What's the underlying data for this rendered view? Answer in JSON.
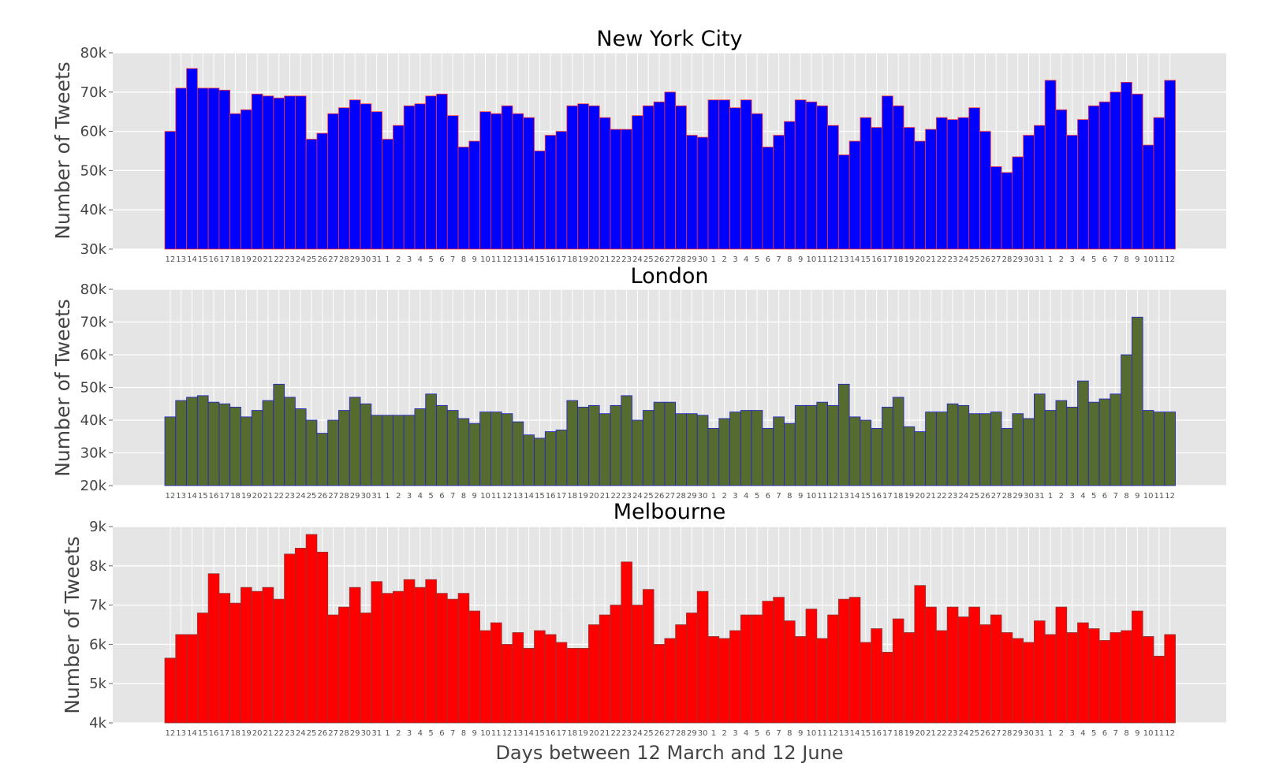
{
  "chart_data": [
    {
      "type": "bar",
      "title": "New York City",
      "ylabel": "Number of Tweets",
      "xlabel": "",
      "ylim": [
        30000,
        80000
      ],
      "yticks": [
        "30k",
        "40k",
        "50k",
        "60k",
        "70k",
        "80k"
      ],
      "grid": true,
      "bar_color": "#0000ff",
      "edge_color": "#ff3333",
      "categories": [
        "12",
        "13",
        "14",
        "15",
        "16",
        "17",
        "18",
        "19",
        "20",
        "21",
        "22",
        "23",
        "24",
        "25",
        "26",
        "27",
        "28",
        "29",
        "30",
        "31",
        "1",
        "2",
        "3",
        "4",
        "5",
        "6",
        "7",
        "8",
        "9",
        "10",
        "11",
        "12",
        "13",
        "14",
        "15",
        "16",
        "17",
        "18",
        "19",
        "20",
        "21",
        "22",
        "23",
        "24",
        "25",
        "26",
        "27",
        "28",
        "29",
        "30",
        "1",
        "2",
        "3",
        "4",
        "5",
        "6",
        "7",
        "8",
        "9",
        "10",
        "11",
        "12",
        "13",
        "14",
        "15",
        "16",
        "17",
        "18",
        "19",
        "20",
        "21",
        "22",
        "23",
        "24",
        "25",
        "26",
        "27",
        "28",
        "29",
        "30",
        "31",
        "1",
        "2",
        "3",
        "4",
        "5",
        "6",
        "7",
        "8",
        "9",
        "10",
        "11",
        "12"
      ],
      "values": [
        60000,
        71000,
        76000,
        71000,
        71000,
        70500,
        64500,
        65500,
        69500,
        69000,
        68500,
        69000,
        69000,
        58000,
        59500,
        64500,
        66000,
        68000,
        67000,
        65000,
        58000,
        61500,
        66500,
        67000,
        69000,
        69500,
        64000,
        56000,
        57500,
        65000,
        64500,
        66500,
        64500,
        63500,
        55000,
        59000,
        60000,
        66500,
        67000,
        66500,
        63500,
        60500,
        60500,
        64000,
        66500,
        67500,
        70000,
        66500,
        59000,
        58500,
        68000,
        68000,
        66000,
        68000,
        64500,
        56000,
        59000,
        62500,
        68000,
        67500,
        66500,
        61500,
        54000,
        57500,
        63500,
        61000,
        69000,
        66500,
        61000,
        57500,
        60500,
        63500,
        63000,
        63500,
        66000,
        60000,
        51000,
        49500,
        53500,
        59000,
        61500,
        73000,
        65500,
        59000,
        63000,
        66500,
        67500,
        70000,
        72500,
        69500,
        56500,
        63500,
        73000
      ]
    },
    {
      "type": "bar",
      "title": "London",
      "ylabel": "Number of Tweets",
      "xlabel": "",
      "ylim": [
        20000,
        80000
      ],
      "yticks": [
        "20k",
        "30k",
        "40k",
        "50k",
        "60k",
        "70k",
        "80k"
      ],
      "grid": true,
      "bar_color": "#556b2f",
      "edge_color": "#2222cc",
      "categories": [
        "12",
        "13",
        "14",
        "15",
        "16",
        "17",
        "18",
        "19",
        "20",
        "21",
        "22",
        "23",
        "24",
        "25",
        "26",
        "27",
        "28",
        "29",
        "30",
        "31",
        "1",
        "2",
        "3",
        "4",
        "5",
        "6",
        "7",
        "8",
        "9",
        "10",
        "11",
        "12",
        "13",
        "14",
        "15",
        "16",
        "17",
        "18",
        "19",
        "20",
        "21",
        "22",
        "23",
        "24",
        "25",
        "26",
        "27",
        "28",
        "29",
        "30",
        "1",
        "2",
        "3",
        "4",
        "5",
        "6",
        "7",
        "8",
        "9",
        "10",
        "11",
        "12",
        "13",
        "14",
        "15",
        "16",
        "17",
        "18",
        "19",
        "20",
        "21",
        "22",
        "23",
        "24",
        "25",
        "26",
        "27",
        "28",
        "29",
        "30",
        "31",
        "1",
        "2",
        "3",
        "4",
        "5",
        "6",
        "7",
        "8",
        "9",
        "10",
        "11",
        "12"
      ],
      "values": [
        41000,
        46000,
        47000,
        47500,
        45500,
        45000,
        44000,
        41000,
        43000,
        46000,
        51000,
        47000,
        43500,
        40000,
        36000,
        40000,
        43000,
        47000,
        45000,
        41500,
        41500,
        41500,
        41500,
        43500,
        48000,
        44500,
        43000,
        40500,
        39000,
        42500,
        42500,
        42000,
        39500,
        35500,
        34500,
        36500,
        37000,
        46000,
        44000,
        44500,
        42000,
        44500,
        47500,
        40000,
        43000,
        45500,
        45500,
        42000,
        42000,
        41500,
        37500,
        40500,
        42500,
        43000,
        43000,
        37500,
        41000,
        39000,
        44500,
        44500,
        45500,
        44500,
        51000,
        41000,
        40000,
        37500,
        44000,
        47000,
        38000,
        36500,
        42500,
        42500,
        45000,
        44500,
        42000,
        42000,
        42500,
        37500,
        42000,
        40500,
        48000,
        43000,
        46000,
        44000,
        52000,
        45500,
        46500,
        48000,
        60000,
        71500,
        43000,
        42500,
        42500
      ]
    },
    {
      "type": "bar",
      "title": "Melbourne",
      "ylabel": "Number of Tweets",
      "xlabel": "Days between 12 March and 12 June",
      "ylim": [
        4000,
        9000
      ],
      "yticks": [
        "4k",
        "5k",
        "6k",
        "7k",
        "8k",
        "9k"
      ],
      "grid": true,
      "bar_color": "#ff0000",
      "edge_color": "#8b3a3a",
      "categories": [
        "12",
        "13",
        "14",
        "15",
        "16",
        "17",
        "18",
        "19",
        "20",
        "21",
        "22",
        "23",
        "24",
        "25",
        "26",
        "27",
        "28",
        "29",
        "30",
        "31",
        "1",
        "2",
        "3",
        "4",
        "5",
        "6",
        "7",
        "8",
        "9",
        "10",
        "11",
        "12",
        "13",
        "14",
        "15",
        "16",
        "17",
        "18",
        "19",
        "20",
        "21",
        "22",
        "23",
        "24",
        "25",
        "26",
        "27",
        "28",
        "29",
        "30",
        "1",
        "2",
        "3",
        "4",
        "5",
        "6",
        "7",
        "8",
        "9",
        "10",
        "11",
        "12",
        "13",
        "14",
        "15",
        "16",
        "17",
        "18",
        "19",
        "20",
        "21",
        "22",
        "23",
        "24",
        "25",
        "26",
        "27",
        "28",
        "29",
        "30",
        "31",
        "1",
        "2",
        "3",
        "4",
        "5",
        "6",
        "7",
        "8",
        "9",
        "10",
        "11",
        "12"
      ],
      "values": [
        5650,
        6250,
        6250,
        6800,
        7800,
        7300,
        7050,
        7450,
        7350,
        7450,
        7150,
        8300,
        8450,
        8800,
        8350,
        6750,
        6950,
        7450,
        6800,
        7600,
        7300,
        7350,
        7650,
        7450,
        7650,
        7300,
        7150,
        7300,
        6850,
        6350,
        6550,
        6000,
        6300,
        5900,
        6350,
        6250,
        6050,
        5900,
        5900,
        6500,
        6750,
        7000,
        8100,
        7000,
        7400,
        6000,
        6150,
        6500,
        6800,
        7350,
        6200,
        6150,
        6350,
        6750,
        6750,
        7100,
        7200,
        6600,
        6200,
        6900,
        6150,
        6750,
        7150,
        7200,
        6050,
        6400,
        5800,
        6650,
        6300,
        7500,
        6950,
        6350,
        6950,
        6700,
        6950,
        6500,
        6750,
        6300,
        6150,
        6050,
        6600,
        6250,
        6950,
        6300,
        6550,
        6400,
        6100,
        6300,
        6350,
        6850,
        6200,
        5700,
        6250
      ]
    }
  ]
}
